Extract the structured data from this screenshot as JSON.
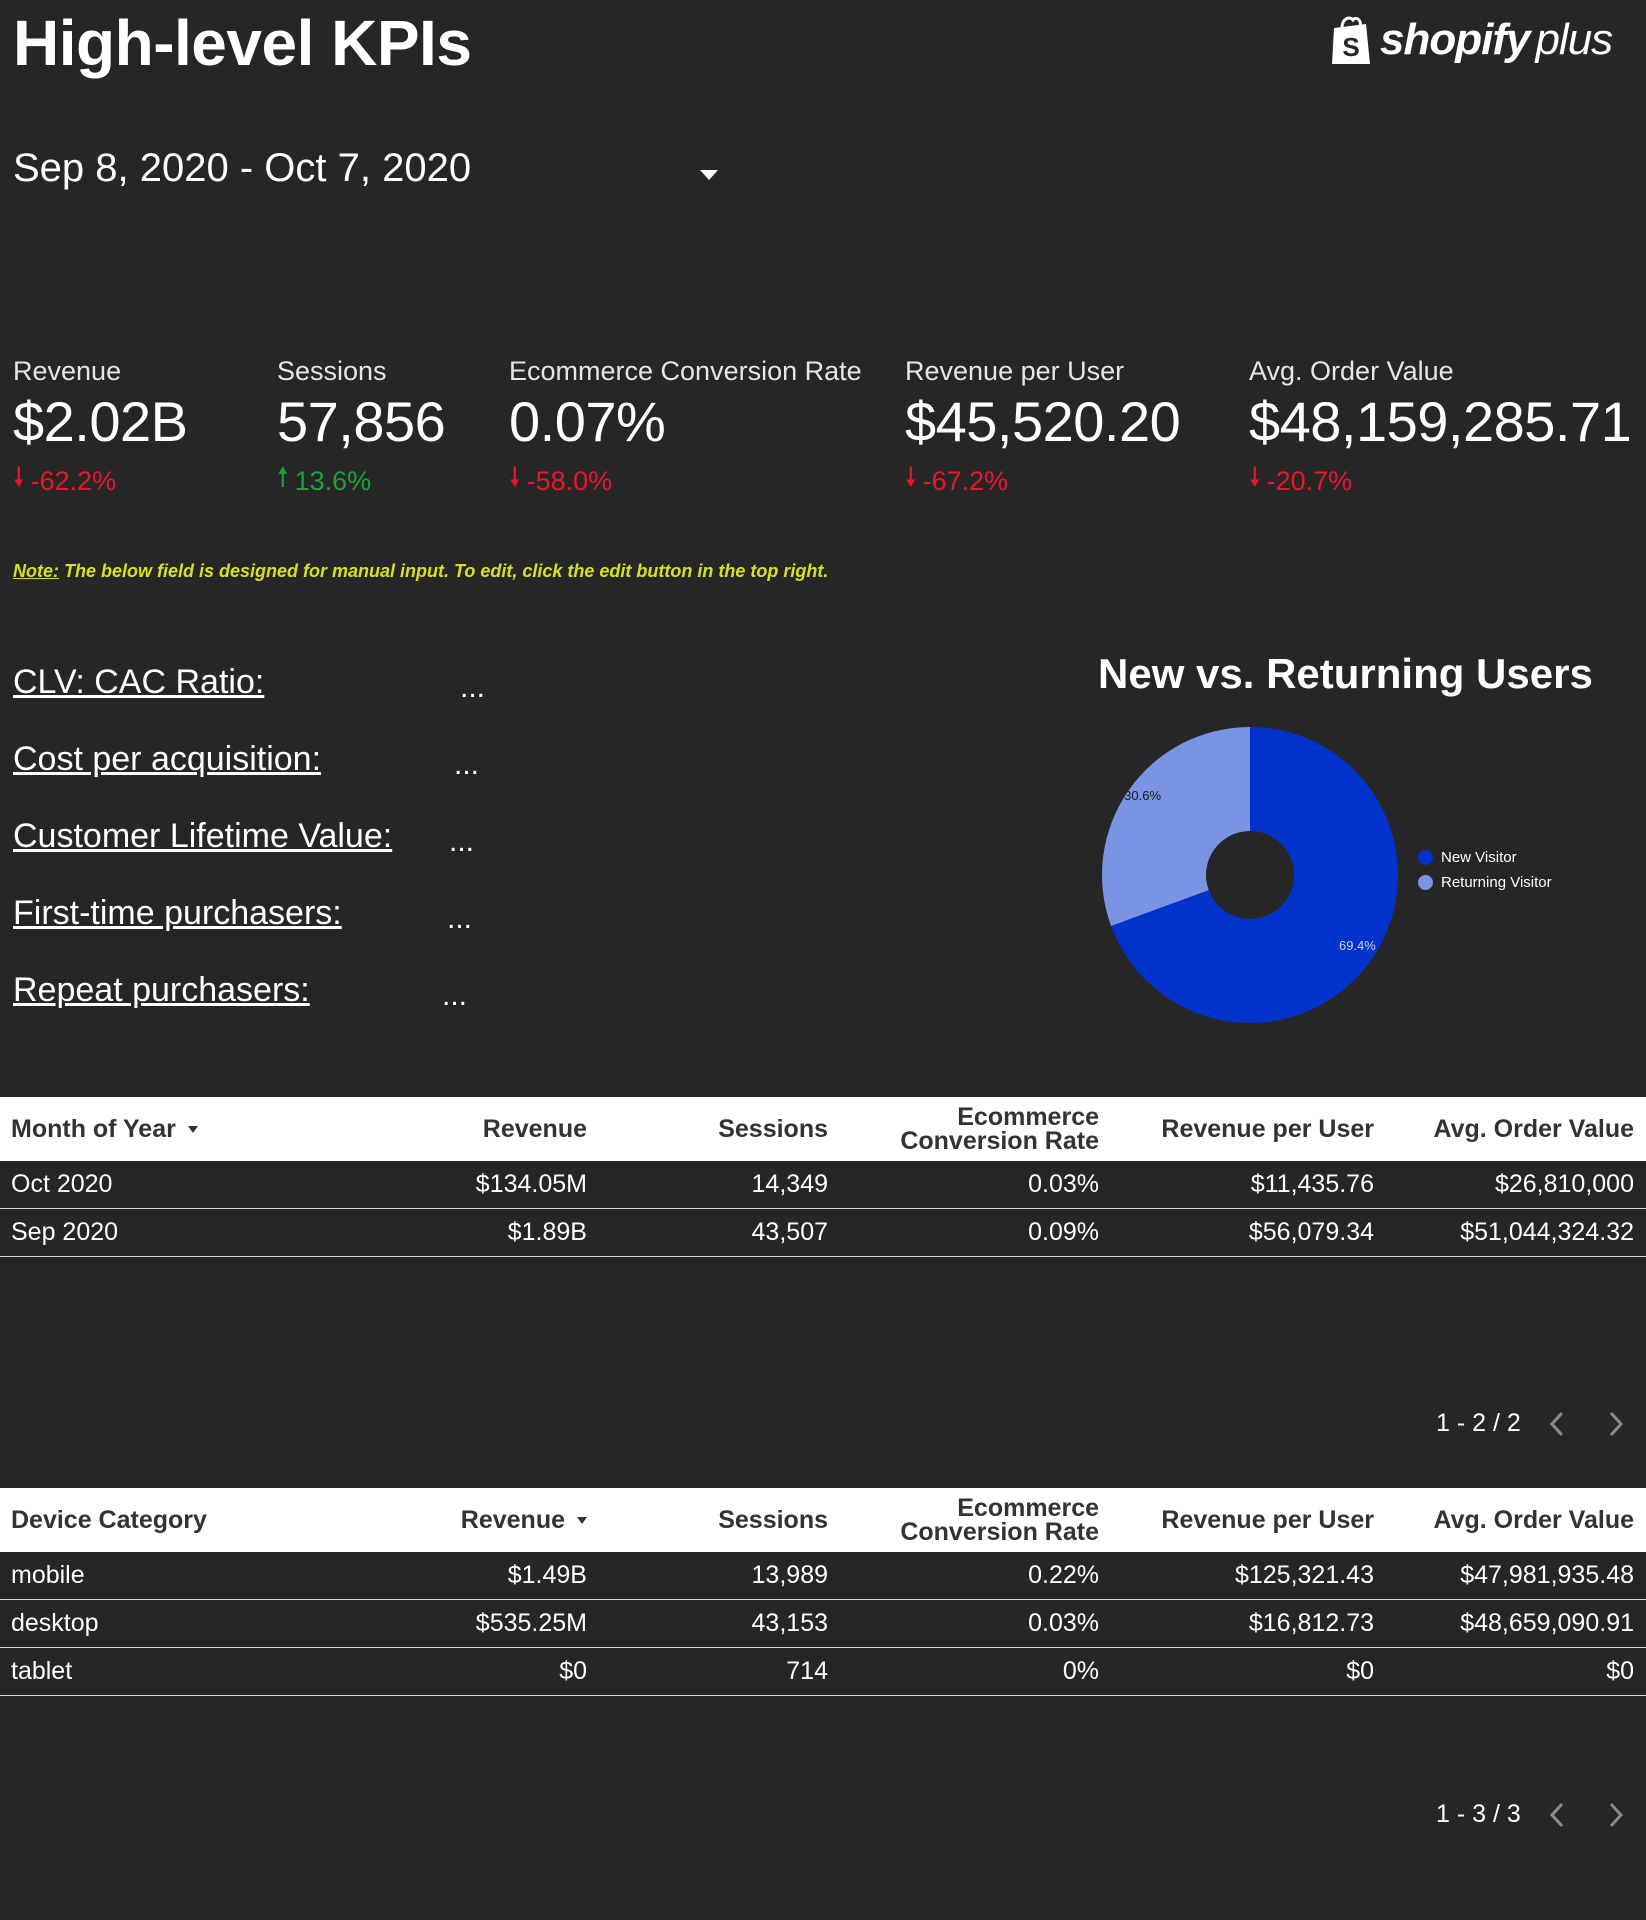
{
  "header": {
    "title": "High-level KPIs",
    "logo": {
      "word": "shopify",
      "plus": "plus"
    }
  },
  "date_range": {
    "value": "Sep 8, 2020 - Oct 7, 2020"
  },
  "kpis": [
    {
      "label": "Revenue",
      "value": "$2.02B",
      "change": "-62.2%",
      "direction": "down"
    },
    {
      "label": "Sessions",
      "value": "57,856",
      "change": "13.6%",
      "direction": "up"
    },
    {
      "label": "Ecommerce Conversion Rate",
      "value": "0.07%",
      "change": "-58.0%",
      "direction": "down"
    },
    {
      "label": "Revenue per User",
      "value": "$45,520.20",
      "change": "-67.2%",
      "direction": "down"
    },
    {
      "label": "Avg. Order Value",
      "value": "$48,159,285.71",
      "change": "-20.7%",
      "direction": "down"
    }
  ],
  "note": {
    "prefix": "Note:",
    "text": " The below field is designed for manual input. To edit, click the edit button in the top right."
  },
  "manual_metrics": [
    {
      "label": "CLV: CAC Ratio:",
      "value": "..."
    },
    {
      "label": "Cost per acquisition:",
      "value": "..."
    },
    {
      "label": "Customer Lifetime Value:",
      "value": "..."
    },
    {
      "label": "First-time purchasers:",
      "value": "..."
    },
    {
      "label": "Repeat purchasers:",
      "value": "..."
    }
  ],
  "chart_data": {
    "type": "pie",
    "title": "New vs. Returning Users",
    "categories": [
      "New Visitor",
      "Returning Visitor"
    ],
    "values": [
      69.4,
      30.6
    ],
    "labels": [
      "69.4%",
      "30.6%"
    ],
    "colors": [
      "#0033cc",
      "#7b93e3"
    ],
    "donut": true,
    "legend": "right"
  },
  "table_month": {
    "headers": [
      "Month of Year",
      "Revenue",
      "Sessions",
      "Ecommerce",
      "Conversion Rate",
      "Revenue per User",
      "Avg. Order Value"
    ],
    "rows": [
      [
        "Oct 2020",
        "$134.05M",
        "14,349",
        "0.03%",
        "$11,435.76",
        "$26,810,000"
      ],
      [
        "Sep 2020",
        "$1.89B",
        "43,507",
        "0.09%",
        "$56,079.34",
        "$51,044,324.32"
      ]
    ],
    "pager": "1 - 2 / 2"
  },
  "table_device": {
    "headers": [
      "Device Category",
      "Revenue",
      "Sessions",
      "Ecommerce",
      "Conversion Rate",
      "Revenue per User",
      "Avg. Order Value"
    ],
    "rows": [
      [
        "mobile",
        "$1.49B",
        "13,989",
        "0.22%",
        "$125,321.43",
        "$47,981,935.48"
      ],
      [
        "desktop",
        "$535.25M",
        "43,153",
        "0.03%",
        "$16,812.73",
        "$48,659,090.91"
      ],
      [
        "tablet",
        "$0",
        "714",
        "0%",
        "$0",
        "$0"
      ]
    ],
    "pager": "1 - 3 / 3"
  }
}
